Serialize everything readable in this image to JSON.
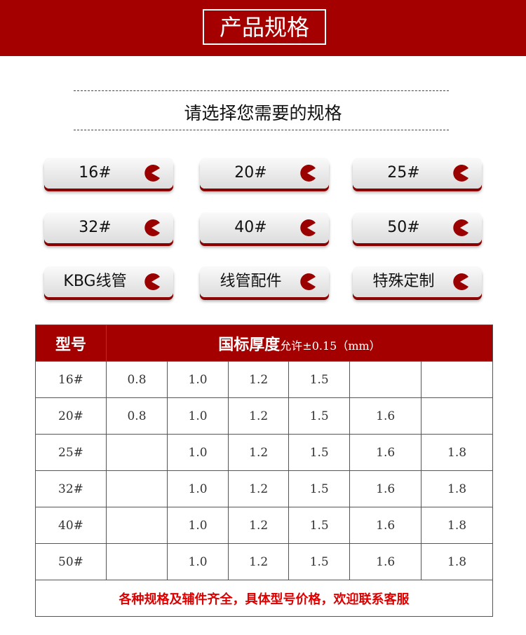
{
  "banner": {
    "title": "产品规格"
  },
  "subtitle": "请选择您需要的规格",
  "buttons": [
    {
      "label": "16#"
    },
    {
      "label": "20#"
    },
    {
      "label": "25#"
    },
    {
      "label": "32#"
    },
    {
      "label": "40#"
    },
    {
      "label": "50#"
    },
    {
      "label": "KBG线管"
    },
    {
      "label": "线管配件"
    },
    {
      "label": "特殊定制"
    }
  ],
  "table": {
    "header_model": "型号",
    "header_thickness": "国标厚度",
    "header_tolerance": "允许±0.15（mm）",
    "rows": [
      {
        "model": "16#",
        "values": [
          "0.8",
          "1.0",
          "1.2",
          "1.5",
          "",
          ""
        ]
      },
      {
        "model": "20#",
        "values": [
          "0.8",
          "1.0",
          "1.2",
          "1.5",
          "1.6",
          ""
        ]
      },
      {
        "model": "25#",
        "values": [
          "",
          "1.0",
          "1.2",
          "1.5",
          "1.6",
          "1.8"
        ]
      },
      {
        "model": "32#",
        "values": [
          "",
          "1.0",
          "1.2",
          "1.5",
          "1.6",
          "1.8"
        ]
      },
      {
        "model": "40#",
        "values": [
          "",
          "1.0",
          "1.2",
          "1.5",
          "1.6",
          "1.8"
        ]
      },
      {
        "model": "50#",
        "values": [
          "",
          "1.0",
          "1.2",
          "1.5",
          "1.6",
          "1.8"
        ]
      }
    ],
    "footer": "各种规格及辅件齐全，具体型号价格，欢迎联系客服"
  },
  "colors": {
    "brand_red": "#a50000",
    "footer_text": "#dd0000"
  }
}
